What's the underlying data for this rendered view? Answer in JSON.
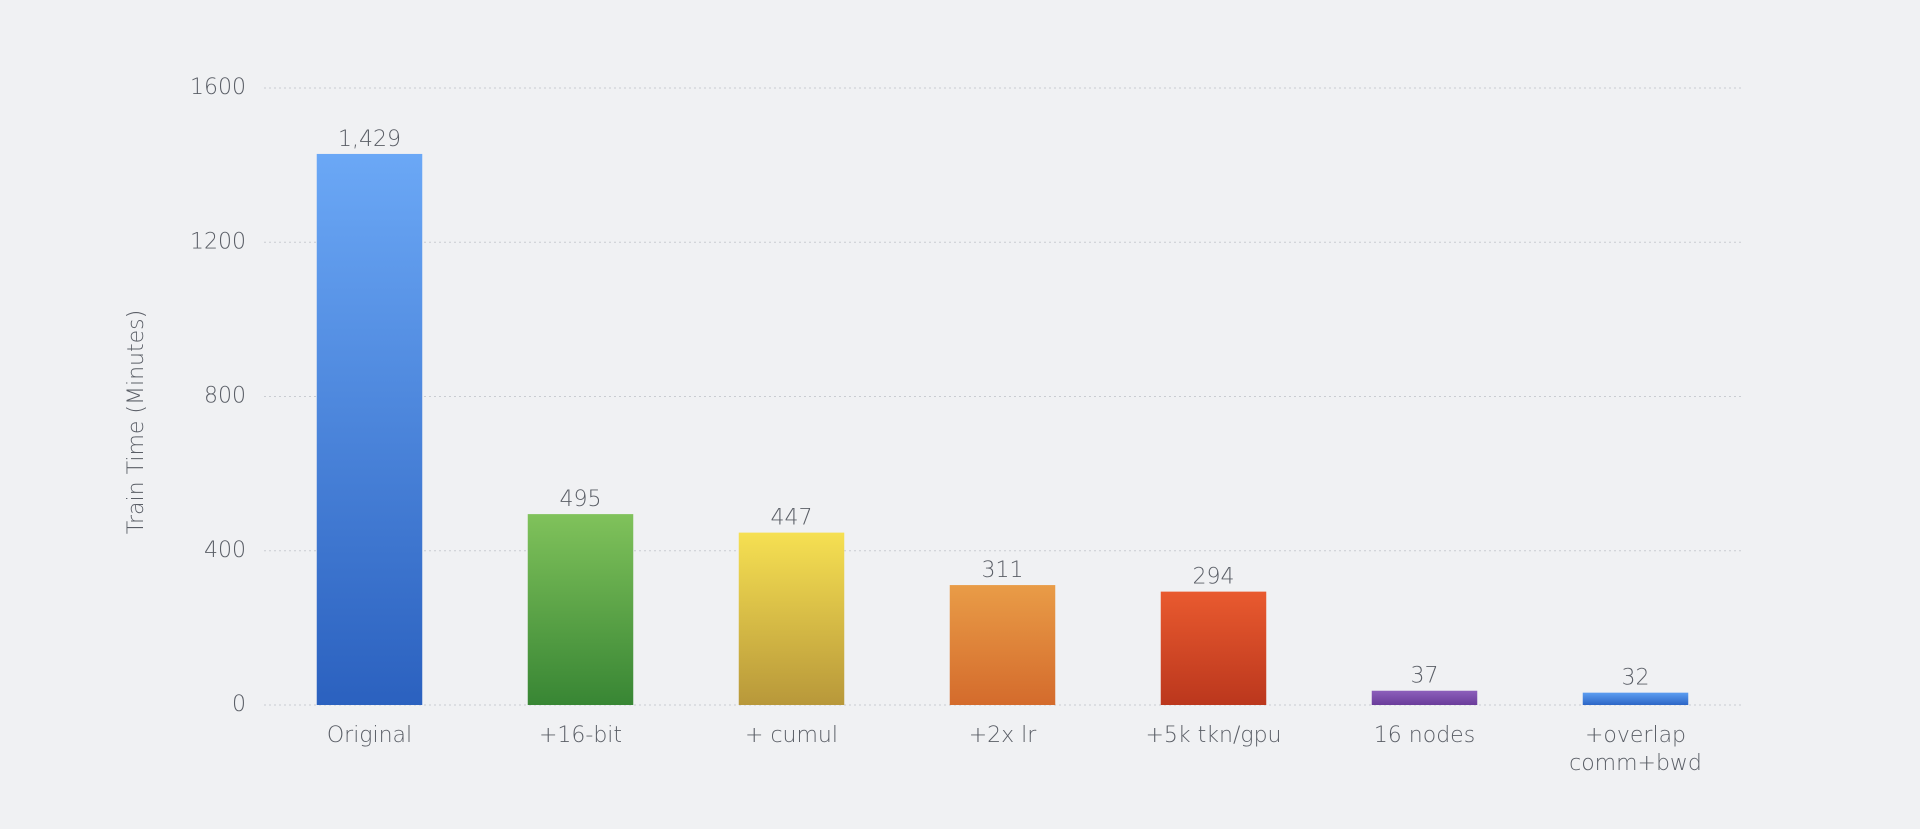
{
  "chart_data": {
    "type": "bar",
    "y_label": "Train Time (Minutes)",
    "categories": [
      "Original",
      "+16-bit",
      "+ cumul",
      "+2x lr",
      "+5k tkn/gpu",
      "16 nodes",
      "+overlap\ncomm+bwd"
    ],
    "values": [
      1429,
      495,
      447,
      311,
      294,
      37,
      32
    ],
    "value_labels": [
      "1,429",
      "495",
      "447",
      "311",
      "294",
      "37",
      "32"
    ],
    "colors": [
      [
        "#6ba8f6",
        "#2b61bf"
      ],
      [
        "#80c25b",
        "#388634"
      ],
      [
        "#f6e052",
        "#b8983a"
      ],
      [
        "#e99c47",
        "#d46b2c"
      ],
      [
        "#e95a2f",
        "#bb371d"
      ],
      [
        "#8c5fbb",
        "#6a3c9a"
      ],
      [
        "#5c9ef1",
        "#2c66c6"
      ]
    ],
    "ylim": [
      0,
      1600
    ],
    "yticks": [
      0,
      400,
      800,
      1200,
      1600
    ],
    "grid": true
  }
}
